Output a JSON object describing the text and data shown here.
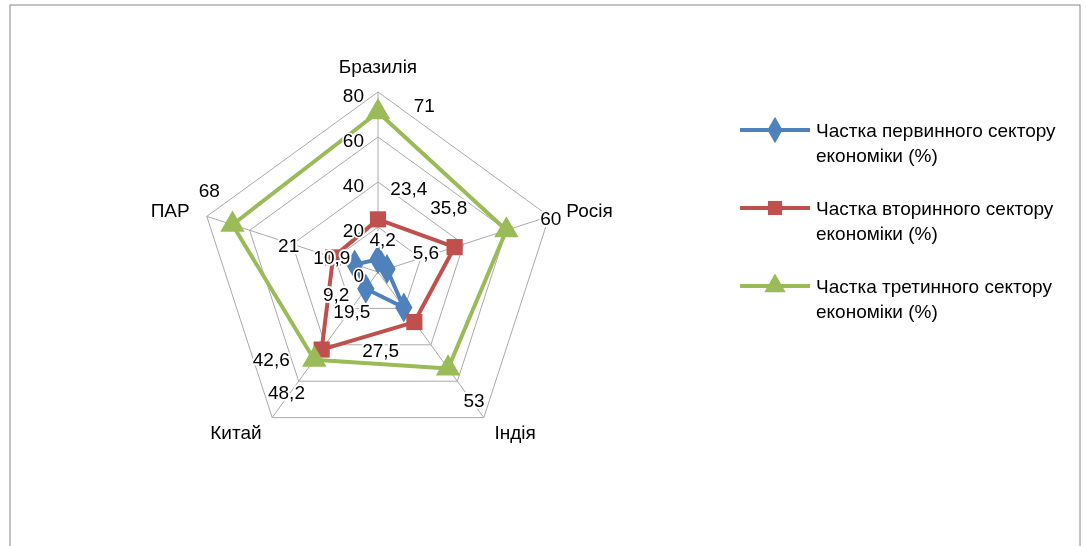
{
  "chart_data": {
    "type": "radar",
    "categories": [
      "Бразилія",
      "Росія",
      "Індія",
      "Китай",
      "ПАР"
    ],
    "ylim": [
      0,
      80
    ],
    "yticks": [
      0,
      20,
      40,
      60,
      80
    ],
    "grid": true,
    "legend": "right",
    "series": [
      {
        "name": "Частка первинного сектору економіки (%)",
        "color": "#4f81bd",
        "marker": "diamond",
        "values": [
          5.6,
          4.2,
          19.5,
          9.2,
          10.9
        ],
        "value_labels": [
          "5,6",
          "4,2",
          "19,5",
          "9,2",
          "10,9"
        ]
      },
      {
        "name": "Частка вторинного сектору економіки (%)",
        "color": "#c0504d",
        "marker": "square",
        "values": [
          23.4,
          35.8,
          27.5,
          42.6,
          21
        ],
        "value_labels": [
          "23,4",
          "35,8",
          "27,5",
          "42,6",
          "21"
        ]
      },
      {
        "name": "Частка третинного сектору економіки (%)",
        "color": "#9bbb59",
        "marker": "triangle",
        "values": [
          71,
          60,
          53,
          48.2,
          68
        ],
        "value_labels": [
          "71",
          "60",
          "53",
          "48,2",
          "68"
        ]
      }
    ]
  }
}
